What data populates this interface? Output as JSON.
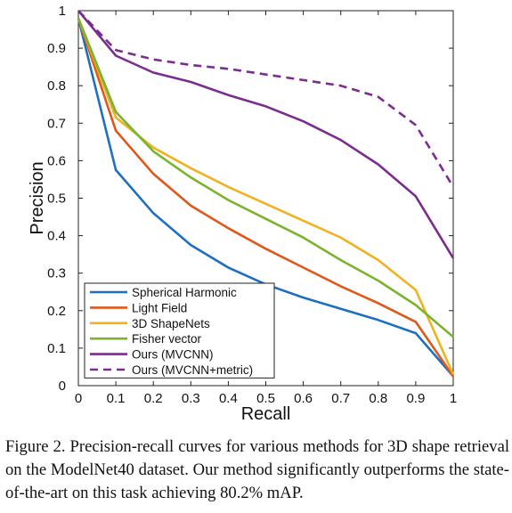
{
  "chart_data": {
    "type": "line",
    "xlabel": "Recall",
    "ylabel": "Precision",
    "xlim": [
      0,
      1
    ],
    "ylim": [
      0,
      1
    ],
    "xticks": [
      "0",
      "0.1",
      "0.2",
      "0.3",
      "0.4",
      "0.5",
      "0.6",
      "0.7",
      "0.8",
      "0.9",
      "1"
    ],
    "yticks": [
      "0",
      "0.1",
      "0.2",
      "0.3",
      "0.4",
      "0.5",
      "0.6",
      "0.7",
      "0.8",
      "0.9",
      "1"
    ],
    "grid": false,
    "legend_position": "bottom-left",
    "x": [
      0,
      0.1,
      0.2,
      0.3,
      0.4,
      0.5,
      0.6,
      0.7,
      0.8,
      0.9,
      1
    ],
    "series": [
      {
        "name": "Spherical Harmonic",
        "color": "#1f6fbf",
        "dash": false,
        "values": [
          0.98,
          0.575,
          0.46,
          0.375,
          0.315,
          0.27,
          0.235,
          0.205,
          0.175,
          0.14,
          0.025
        ]
      },
      {
        "name": "Light Field",
        "color": "#e0571a",
        "dash": false,
        "values": [
          0.98,
          0.68,
          0.565,
          0.48,
          0.42,
          0.365,
          0.315,
          0.265,
          0.22,
          0.17,
          0.025
        ]
      },
      {
        "name": "3D ShapeNets",
        "color": "#f0b21f",
        "dash": false,
        "values": [
          0.98,
          0.715,
          0.635,
          0.58,
          0.53,
          0.485,
          0.44,
          0.395,
          0.335,
          0.255,
          0.03
        ]
      },
      {
        "name": "Fisher vector",
        "color": "#7ab32e",
        "dash": false,
        "values": [
          0.98,
          0.73,
          0.625,
          0.555,
          0.495,
          0.445,
          0.395,
          0.335,
          0.28,
          0.215,
          0.13
        ]
      },
      {
        "name": "Ours (MVCNN)",
        "color": "#7b2c8f",
        "dash": false,
        "values": [
          1.0,
          0.88,
          0.835,
          0.81,
          0.775,
          0.745,
          0.705,
          0.655,
          0.59,
          0.505,
          0.34
        ]
      },
      {
        "name": "Ours (MVCNN+metric)",
        "color": "#7b2c8f",
        "dash": true,
        "values": [
          1.0,
          0.895,
          0.87,
          0.855,
          0.845,
          0.83,
          0.815,
          0.8,
          0.77,
          0.695,
          0.53
        ]
      }
    ]
  },
  "caption": "Figure 2. Precision-recall curves for various methods for 3D shape retrieval on the ModelNet40 dataset. Our method significantly outperforms the state-of-the-art on this task achieving 80.2% mAP."
}
